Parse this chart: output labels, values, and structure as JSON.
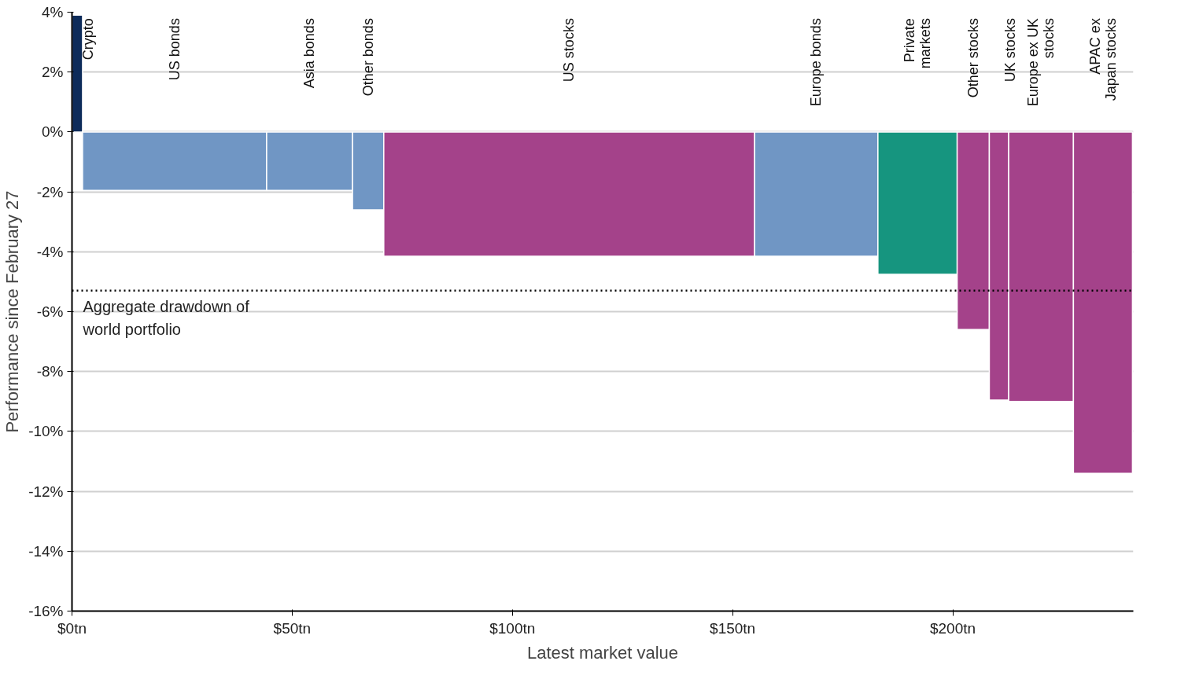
{
  "chart_data": {
    "type": "histogram",
    "xlabel": "Latest market value",
    "ylabel": "Performance since February 27",
    "categories": [
      "Crypto",
      "US bonds",
      "Asia bonds",
      "Other bonds",
      "US stocks",
      "Europe bonds",
      "Private\nmarkets",
      "Other stocks",
      "UK stocks",
      "Europe ex UK\nstocks",
      "APAC ex\nJapan stocks"
    ],
    "bins": [
      0,
      2.4,
      44.2,
      63.7,
      70.8,
      155,
      183,
      201,
      208.3,
      212.7,
      227.4,
      240.8
    ],
    "values": [
      3.9,
      -1.95,
      -1.95,
      -2.6,
      -4.15,
      -4.15,
      -4.75,
      -6.6,
      -8.95,
      -9.0,
      -11.4
    ],
    "colors": [
      "#0d2b5a",
      "#7096c4",
      "#7096c4",
      "#7096c4",
      "#a4428a",
      "#7096c4",
      "#16957f",
      "#a4428a",
      "#a4428a",
      "#a4428a",
      "#a4428a"
    ],
    "xlim": [
      0,
      241
    ],
    "xticks": [
      {
        "value": 0,
        "label": "$0tn"
      },
      {
        "value": 50,
        "label": "$50tn"
      },
      {
        "value": 100,
        "label": "$100tn"
      },
      {
        "value": 150,
        "label": "$150tn"
      },
      {
        "value": 200,
        "label": "$200tn"
      }
    ],
    "ylim": [
      -16,
      4
    ],
    "yticks": [
      {
        "value": 4,
        "label": "4%"
      },
      {
        "value": 2,
        "label": "2%"
      },
      {
        "value": 0,
        "label": "0%"
      },
      {
        "value": -2,
        "label": "-2%"
      },
      {
        "value": -4,
        "label": "-4%"
      },
      {
        "value": -6,
        "label": "-6%"
      },
      {
        "value": -8,
        "label": "-8%"
      },
      {
        "value": -10,
        "label": "-10%"
      },
      {
        "value": -12,
        "label": "-12%"
      },
      {
        "value": -14,
        "label": "-14%"
      },
      {
        "value": -16,
        "label": "-16%"
      }
    ],
    "ref_lines": [
      {
        "axis": "y",
        "value": -5.3,
        "label": "Aggregate drawdown of\nworld portfolio",
        "color": "#000000",
        "line_style": "dotted"
      }
    ],
    "grid": "y"
  }
}
